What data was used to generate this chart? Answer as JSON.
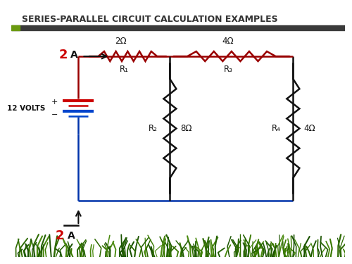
{
  "title": "SERIES-PARALLEL CIRCUIT CALCULATION EXAMPLES",
  "title_fontsize": 9.0,
  "title_fontweight": "bold",
  "bg_color": "#ffffff",
  "header_bar_color": "#3a3a3a",
  "green_accent": "#6a9a10",
  "wire_color_red": "#990000",
  "wire_color_blue": "#0033aa",
  "wire_color_black": "#111111",
  "battery_red": "#cc0000",
  "battery_blue": "#0044cc",
  "label_color": "#333333",
  "current_label_color": "#cc0000",
  "grass_colors": [
    "#1a5200",
    "#2d6a00",
    "#3a7a00",
    "#4a8a10",
    "#226000"
  ],
  "resistor_labels": [
    "R₁",
    "R₂",
    "R₃",
    "R₄"
  ],
  "resistor_values": [
    "2Ω",
    "8Ω",
    "4Ω",
    "4Ω"
  ],
  "voltage_label": "12 VOLTS",
  "current_label": "2"
}
